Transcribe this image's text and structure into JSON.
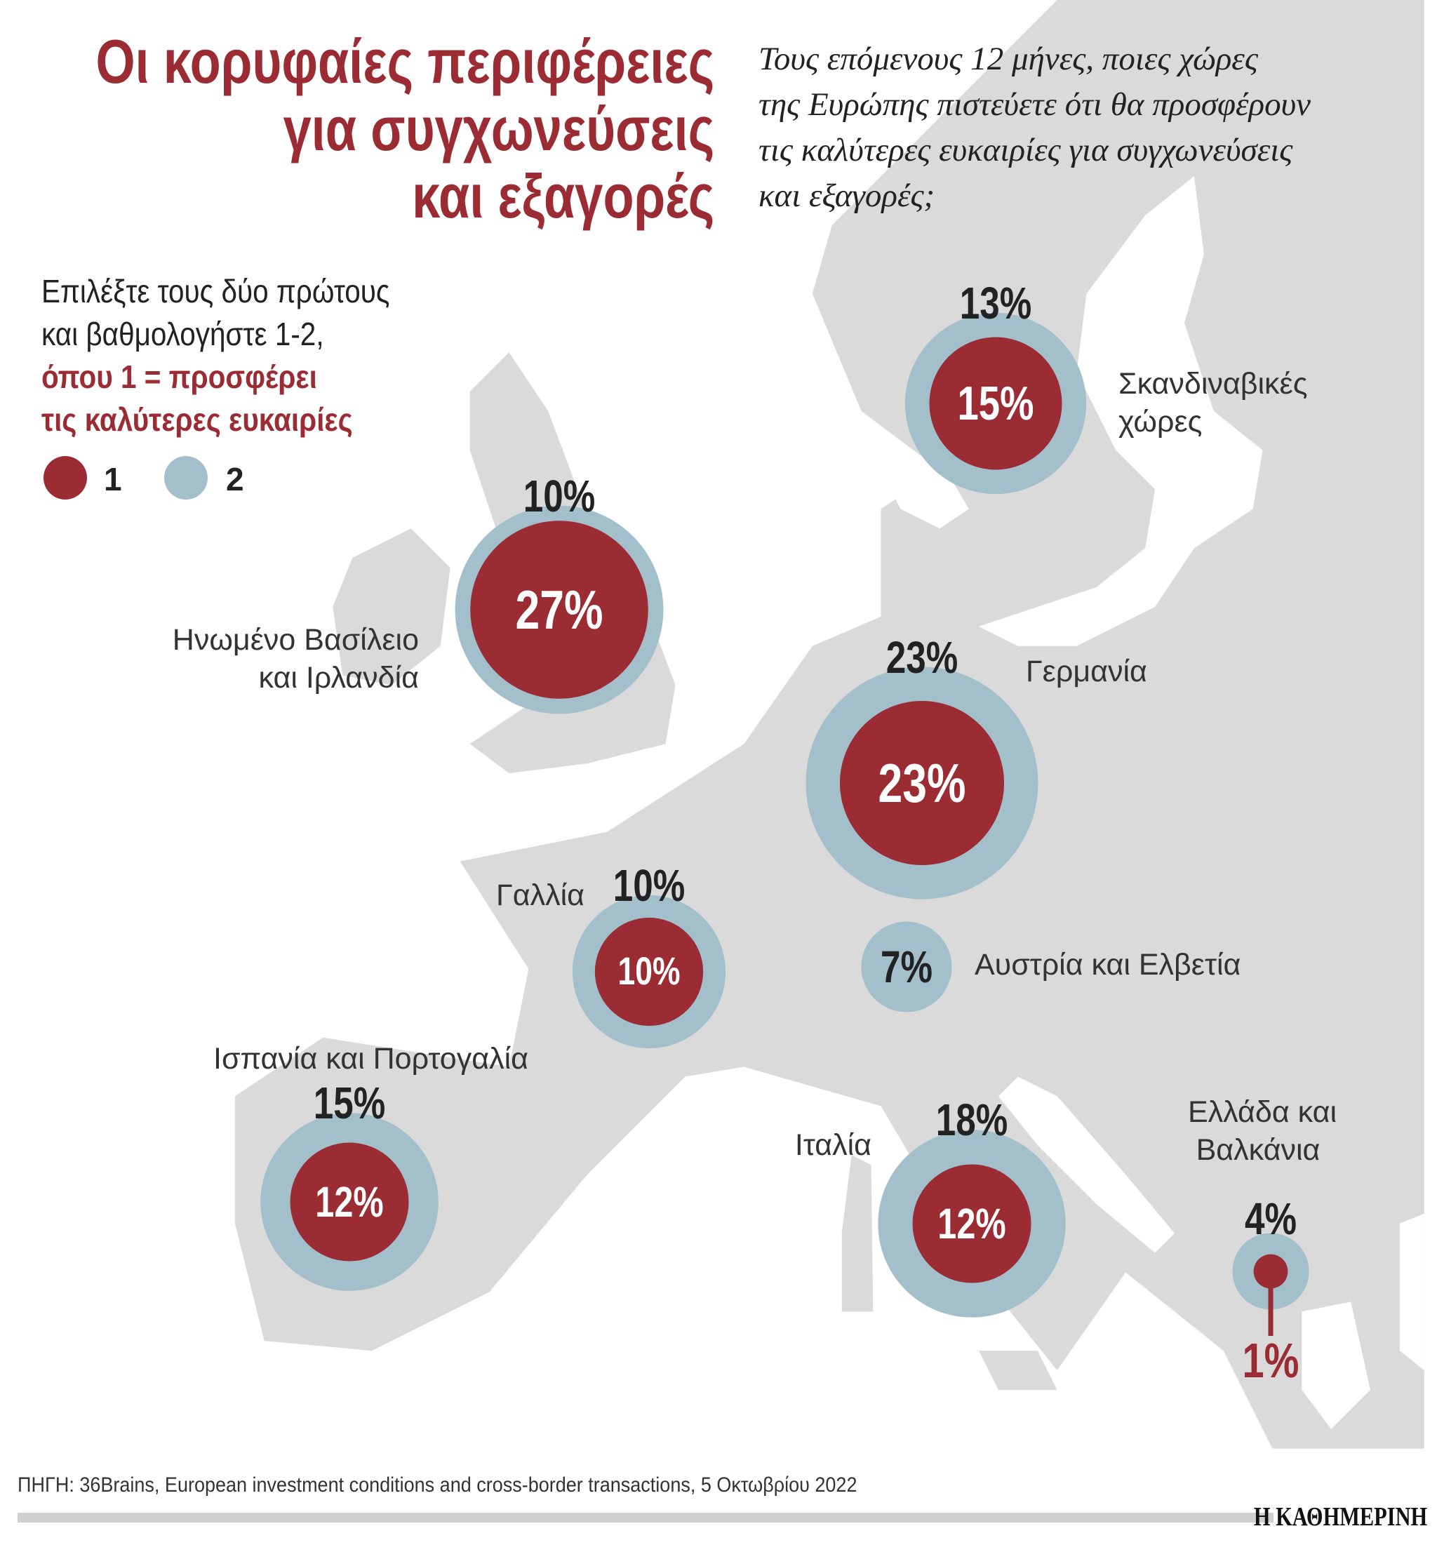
{
  "title": [
    "Οι κορυφαίες περιφέρειες",
    "για συγχωνεύσεις",
    "και εξαγορές"
  ],
  "subtitle": [
    "Τους επόμενους 12 μήνες, ποιες χώρες",
    "της Ευρώπης πιστεύετε ότι θα προσφέρουν",
    "τις καλύτερες ευκαιρίες για συγχωνεύσεις",
    "και εξαγορές;"
  ],
  "instructions": {
    "lines": [
      "Επιλέξτε τους δύο πρώτους",
      "και βαθμολογήστε 1-2,"
    ],
    "bold_lines": [
      "όπου 1 = προσφέρει",
      "τις καλύτερες ευκαιρίες"
    ]
  },
  "legend": [
    {
      "label": "1",
      "color": "#9b2c33"
    },
    {
      "label": "2",
      "color": "#a3bfcb"
    }
  ],
  "colors": {
    "rank1": "#9b2c33",
    "rank2": "#a3bfcb",
    "land": "#dadada"
  },
  "chart_data": {
    "type": "bubble-map",
    "unit": "%",
    "series": [
      {
        "name": "1"
      },
      {
        "name": "2"
      }
    ],
    "regions": [
      {
        "name": [
          "Σκανδιναβικές",
          "χώρες"
        ],
        "rank1": 15,
        "rank2": 13,
        "rank1_label": "15%",
        "rank2_label": "13%"
      },
      {
        "name": [
          "Ηνωμένο Βασίλειο",
          "και Ιρλανδία"
        ],
        "rank1": 27,
        "rank2": 10,
        "rank1_label": "27%",
        "rank2_label": "10%"
      },
      {
        "name": [
          "Γερμανία"
        ],
        "rank1": 23,
        "rank2": 23,
        "rank1_label": "23%",
        "rank2_label": "23%"
      },
      {
        "name": [
          "Γαλλία"
        ],
        "rank1": 10,
        "rank2": 10,
        "rank1_label": "10%",
        "rank2_label": "10%"
      },
      {
        "name": [
          "Αυστρία και Ελβετία"
        ],
        "rank1": 0,
        "rank2": 7,
        "rank1_label": "",
        "rank2_label": "7%"
      },
      {
        "name": [
          "Ισπανία και Πορτογαλία"
        ],
        "rank1": 12,
        "rank2": 15,
        "rank1_label": "12%",
        "rank2_label": "15%"
      },
      {
        "name": [
          "Ιταλία"
        ],
        "rank1": 12,
        "rank2": 18,
        "rank1_label": "12%",
        "rank2_label": "18%"
      },
      {
        "name": [
          "Ελλάδα και",
          "Βαλκάνια"
        ],
        "rank1": 1,
        "rank2": 4,
        "rank1_label": "1%",
        "rank2_label": "4%"
      }
    ]
  },
  "footer": {
    "source": "ΠΗΓΗ: 36Brains, European investment conditions and cross-border transactions, 5 Οκτωβρίου 2022",
    "publisher": "Η ΚΑΘΗΜΕΡΙΝΗ"
  }
}
